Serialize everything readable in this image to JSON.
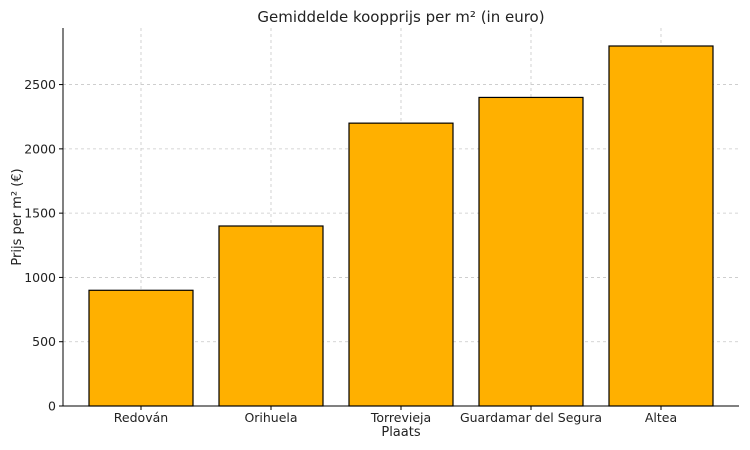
{
  "chart_data": {
    "type": "bar",
    "title": "Gemiddelde koopprijs per m² (in euro)",
    "xlabel": "Plaats",
    "ylabel": "Prijs per m² (€)",
    "categories": [
      "Redován",
      "Orihuela",
      "Torrevieja",
      "Guardamar del Segura",
      "Altea"
    ],
    "values": [
      900,
      1400,
      2200,
      2400,
      2800
    ],
    "ylim": [
      0,
      2940
    ],
    "yticks": [
      0,
      500,
      1000,
      1500,
      2000,
      2500
    ],
    "bar_color": "#ffb000",
    "grid": true
  }
}
